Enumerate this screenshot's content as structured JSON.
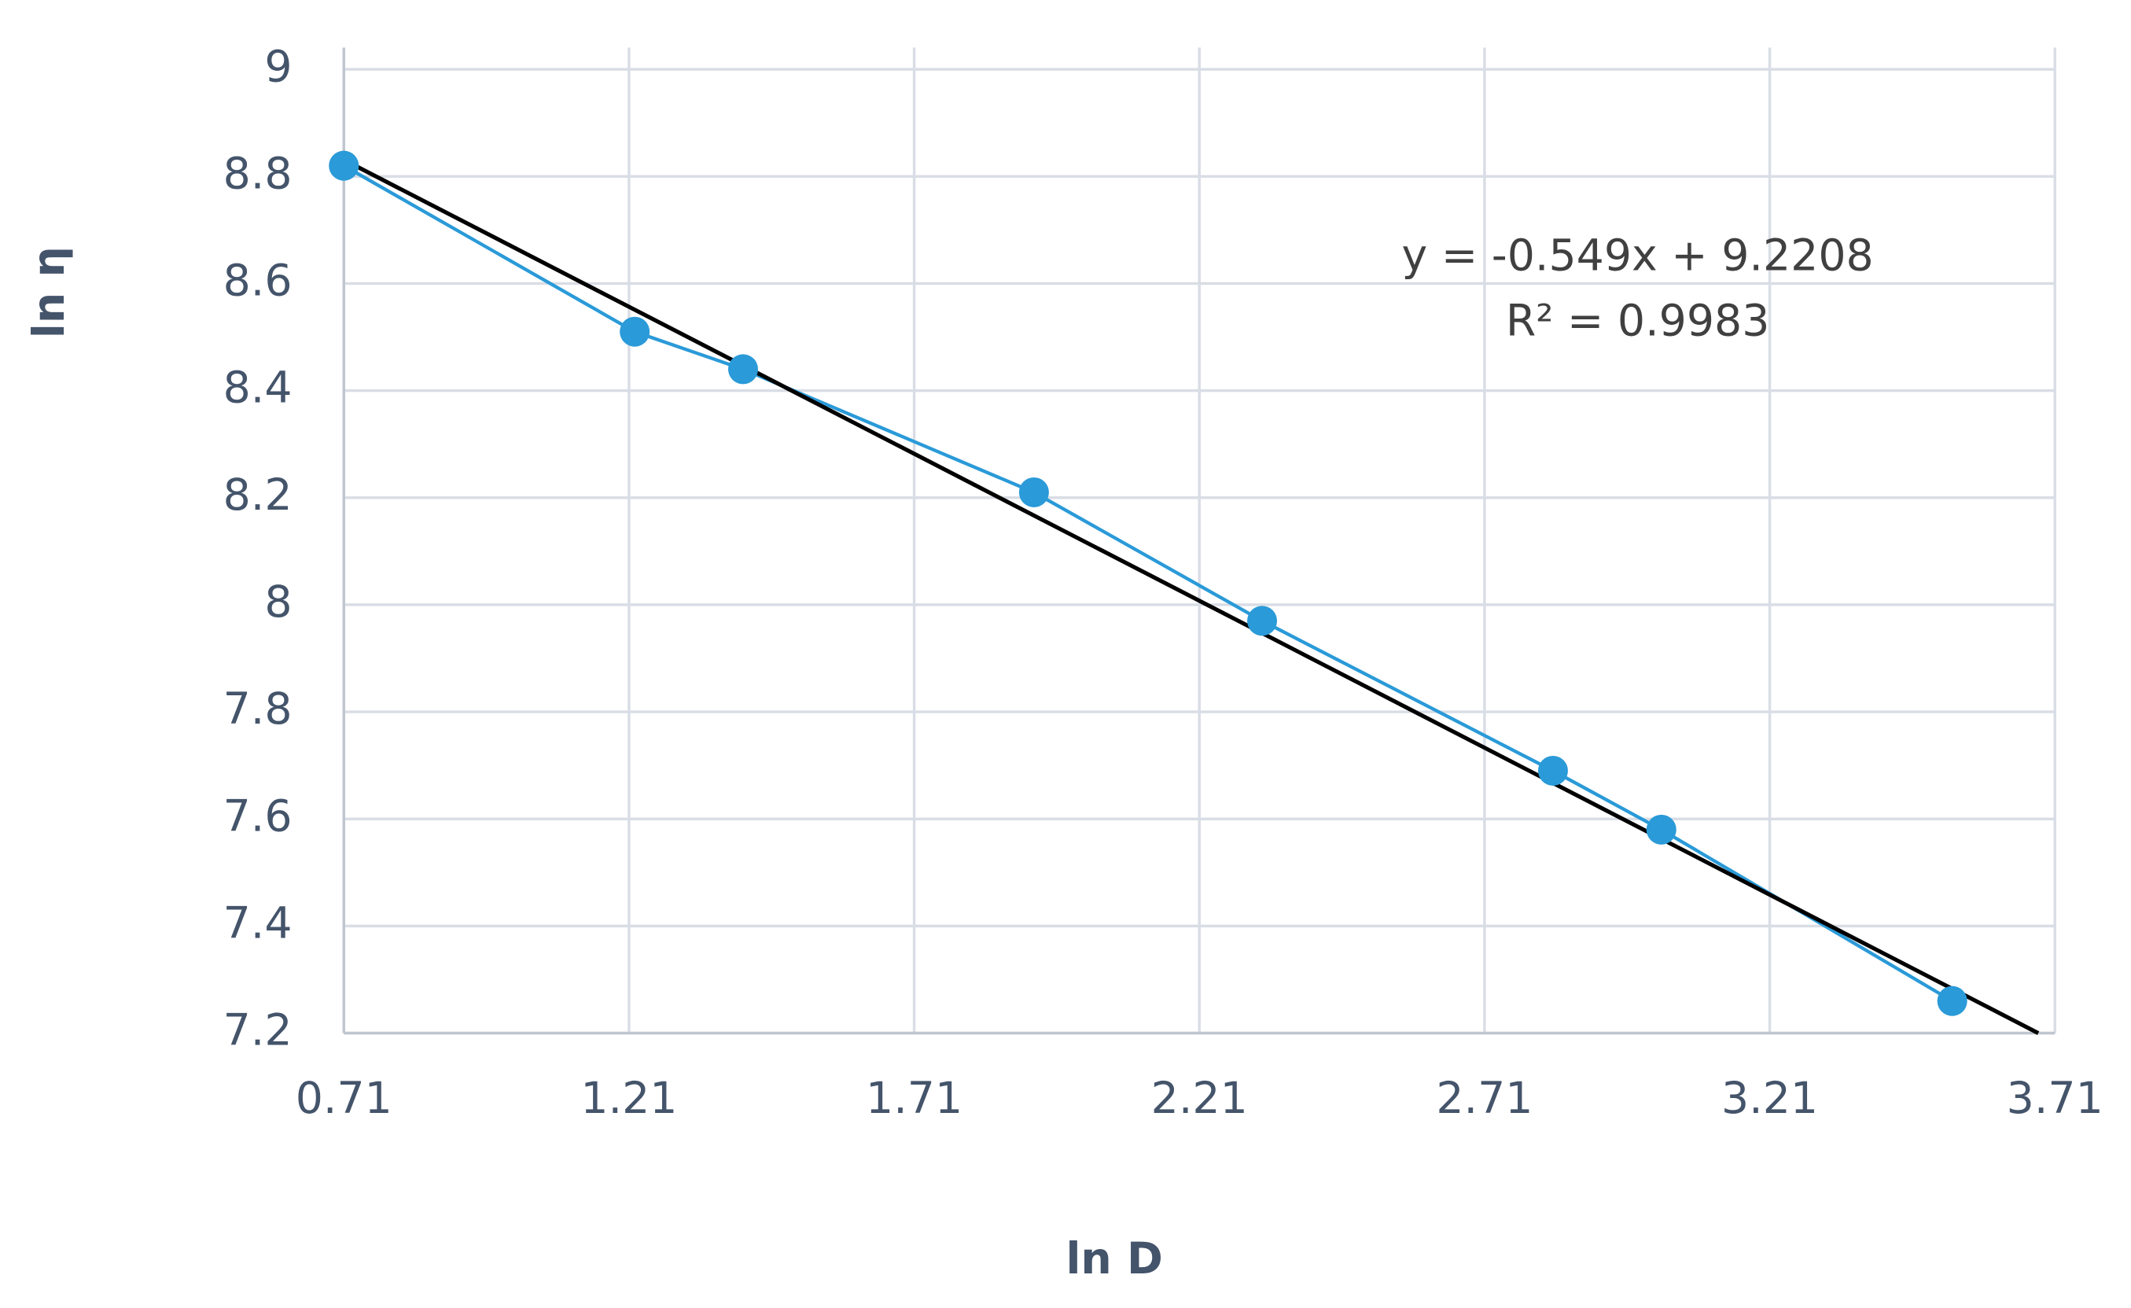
{
  "chart_data": {
    "type": "scatter",
    "x_label": "ln D",
    "y_label": "ln η",
    "xlim": [
      0.71,
      3.71
    ],
    "xticks": [
      0.71,
      1.21,
      1.71,
      2.21,
      2.71,
      3.21,
      3.71
    ],
    "ylim": [
      7.2,
      9
    ],
    "yticks": [
      7.2,
      7.4,
      7.6,
      7.8,
      8,
      8.2,
      8.4,
      8.6,
      8.8,
      9
    ],
    "grid": true,
    "series": [
      {
        "color": "#2a9ad8",
        "x": [
          0.71,
          1.22,
          1.41,
          1.92,
          2.32,
          2.83,
          3.02,
          3.53
        ],
        "values": [
          8.82,
          8.51,
          8.44,
          8.21,
          7.97,
          7.69,
          7.58,
          7.26
        ]
      }
    ],
    "trendline": {
      "slope": -0.549,
      "intercept": 9.2208,
      "color": "#000000",
      "equation": "y = -0.549x + 9.2208",
      "r_squared": "R² = 0.9983"
    }
  }
}
